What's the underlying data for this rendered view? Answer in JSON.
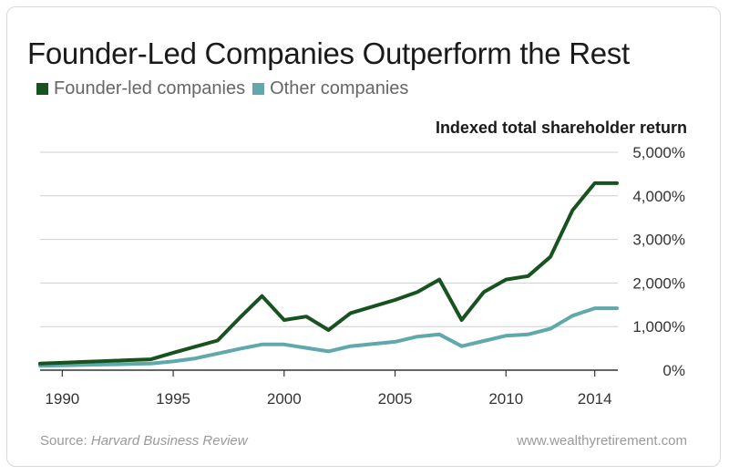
{
  "chart_data": {
    "type": "line",
    "title": "Founder-Led Companies Outperform the Rest",
    "ylabel": "Indexed total shareholder return",
    "xlabel": "",
    "x": [
      1989,
      1990,
      1991,
      1992,
      1993,
      1994,
      1995,
      1996,
      1997,
      1998,
      1999,
      2000,
      2001,
      2002,
      2003,
      2004,
      2005,
      2006,
      2007,
      2008,
      2009,
      2010,
      2011,
      2012,
      2013,
      2014,
      2015
    ],
    "series": [
      {
        "name": "Founder-led companies",
        "color": "#17521f",
        "values": [
          150,
          170,
          190,
          210,
          230,
          250,
          400,
          540,
          680,
          1200,
          1700,
          1150,
          1230,
          920,
          1310,
          1460,
          1610,
          1790,
          2080,
          1150,
          1790,
          2080,
          2160,
          2600,
          3670,
          4290,
          4290
        ]
      },
      {
        "name": "Other companies",
        "color": "#5fa9ad",
        "values": [
          100,
          110,
          120,
          130,
          140,
          150,
          200,
          270,
          380,
          490,
          590,
          590,
          510,
          430,
          550,
          600,
          650,
          770,
          820,
          550,
          670,
          790,
          820,
          950,
          1250,
          1420,
          1420
        ]
      }
    ],
    "ylim": [
      0,
      5000
    ],
    "yticks": [
      "0%",
      "1,000%",
      "2,000%",
      "3,000%",
      "4,000%",
      "5,000%"
    ],
    "xticks": [
      "1990",
      "1995",
      "2000",
      "2005",
      "2010",
      "2014"
    ],
    "grid": true,
    "legend_position": "top-left"
  },
  "footer": {
    "source_prefix": "Source: ",
    "source_name": "Harvard Business Review",
    "site": "www.wealthyretirement.com"
  }
}
